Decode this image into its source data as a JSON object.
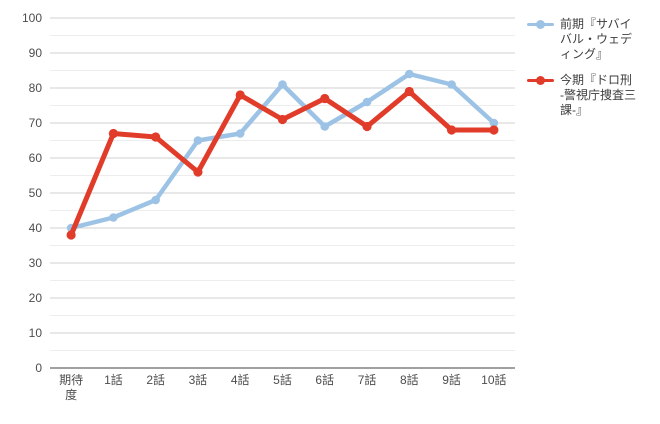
{
  "chart_data": {
    "type": "line",
    "title": "",
    "xlabel": "",
    "ylabel": "",
    "ylim": [
      0,
      100
    ],
    "y_tick_step": 10,
    "y_minor_step": 5,
    "grid": true,
    "legend_position": "right",
    "categories": [
      "期待度",
      "1話",
      "2話",
      "3話",
      "4話",
      "5話",
      "6話",
      "7話",
      "8話",
      "9話",
      "10話"
    ],
    "categories_display": [
      [
        "期待",
        "度"
      ],
      [
        "1話"
      ],
      [
        "2話"
      ],
      [
        "3話"
      ],
      [
        "4話"
      ],
      [
        "5話"
      ],
      [
        "6話"
      ],
      [
        "7話"
      ],
      [
        "8話"
      ],
      [
        "9話"
      ],
      [
        "10話"
      ]
    ],
    "series": [
      {
        "name": "前期『サバイバル・ウェディング』",
        "color": "#9cc3e5",
        "values": [
          40,
          43,
          48,
          65,
          67,
          81,
          69,
          76,
          84,
          81,
          70
        ]
      },
      {
        "name": "今期『ドロ刑-警視庁捜査三課-』",
        "color": "#e13b29",
        "values": [
          38,
          67,
          66,
          56,
          78,
          71,
          77,
          69,
          79,
          68,
          68
        ]
      }
    ],
    "colors": {
      "grid_major": "#d2d2d2",
      "grid_minor": "#ededed",
      "axis_line": "#808080",
      "tick_text": "#4d4d4d"
    }
  },
  "legend": {
    "items": [
      {
        "label_lines": [
          "前期『サバイ",
          "バル・ウェデ",
          "ィング』"
        ],
        "color": "#9cc3e5"
      },
      {
        "label_lines": [
          "今期『ドロ刑",
          "-警視庁捜査三",
          "課-』"
        ],
        "color": "#e13b29"
      }
    ]
  }
}
